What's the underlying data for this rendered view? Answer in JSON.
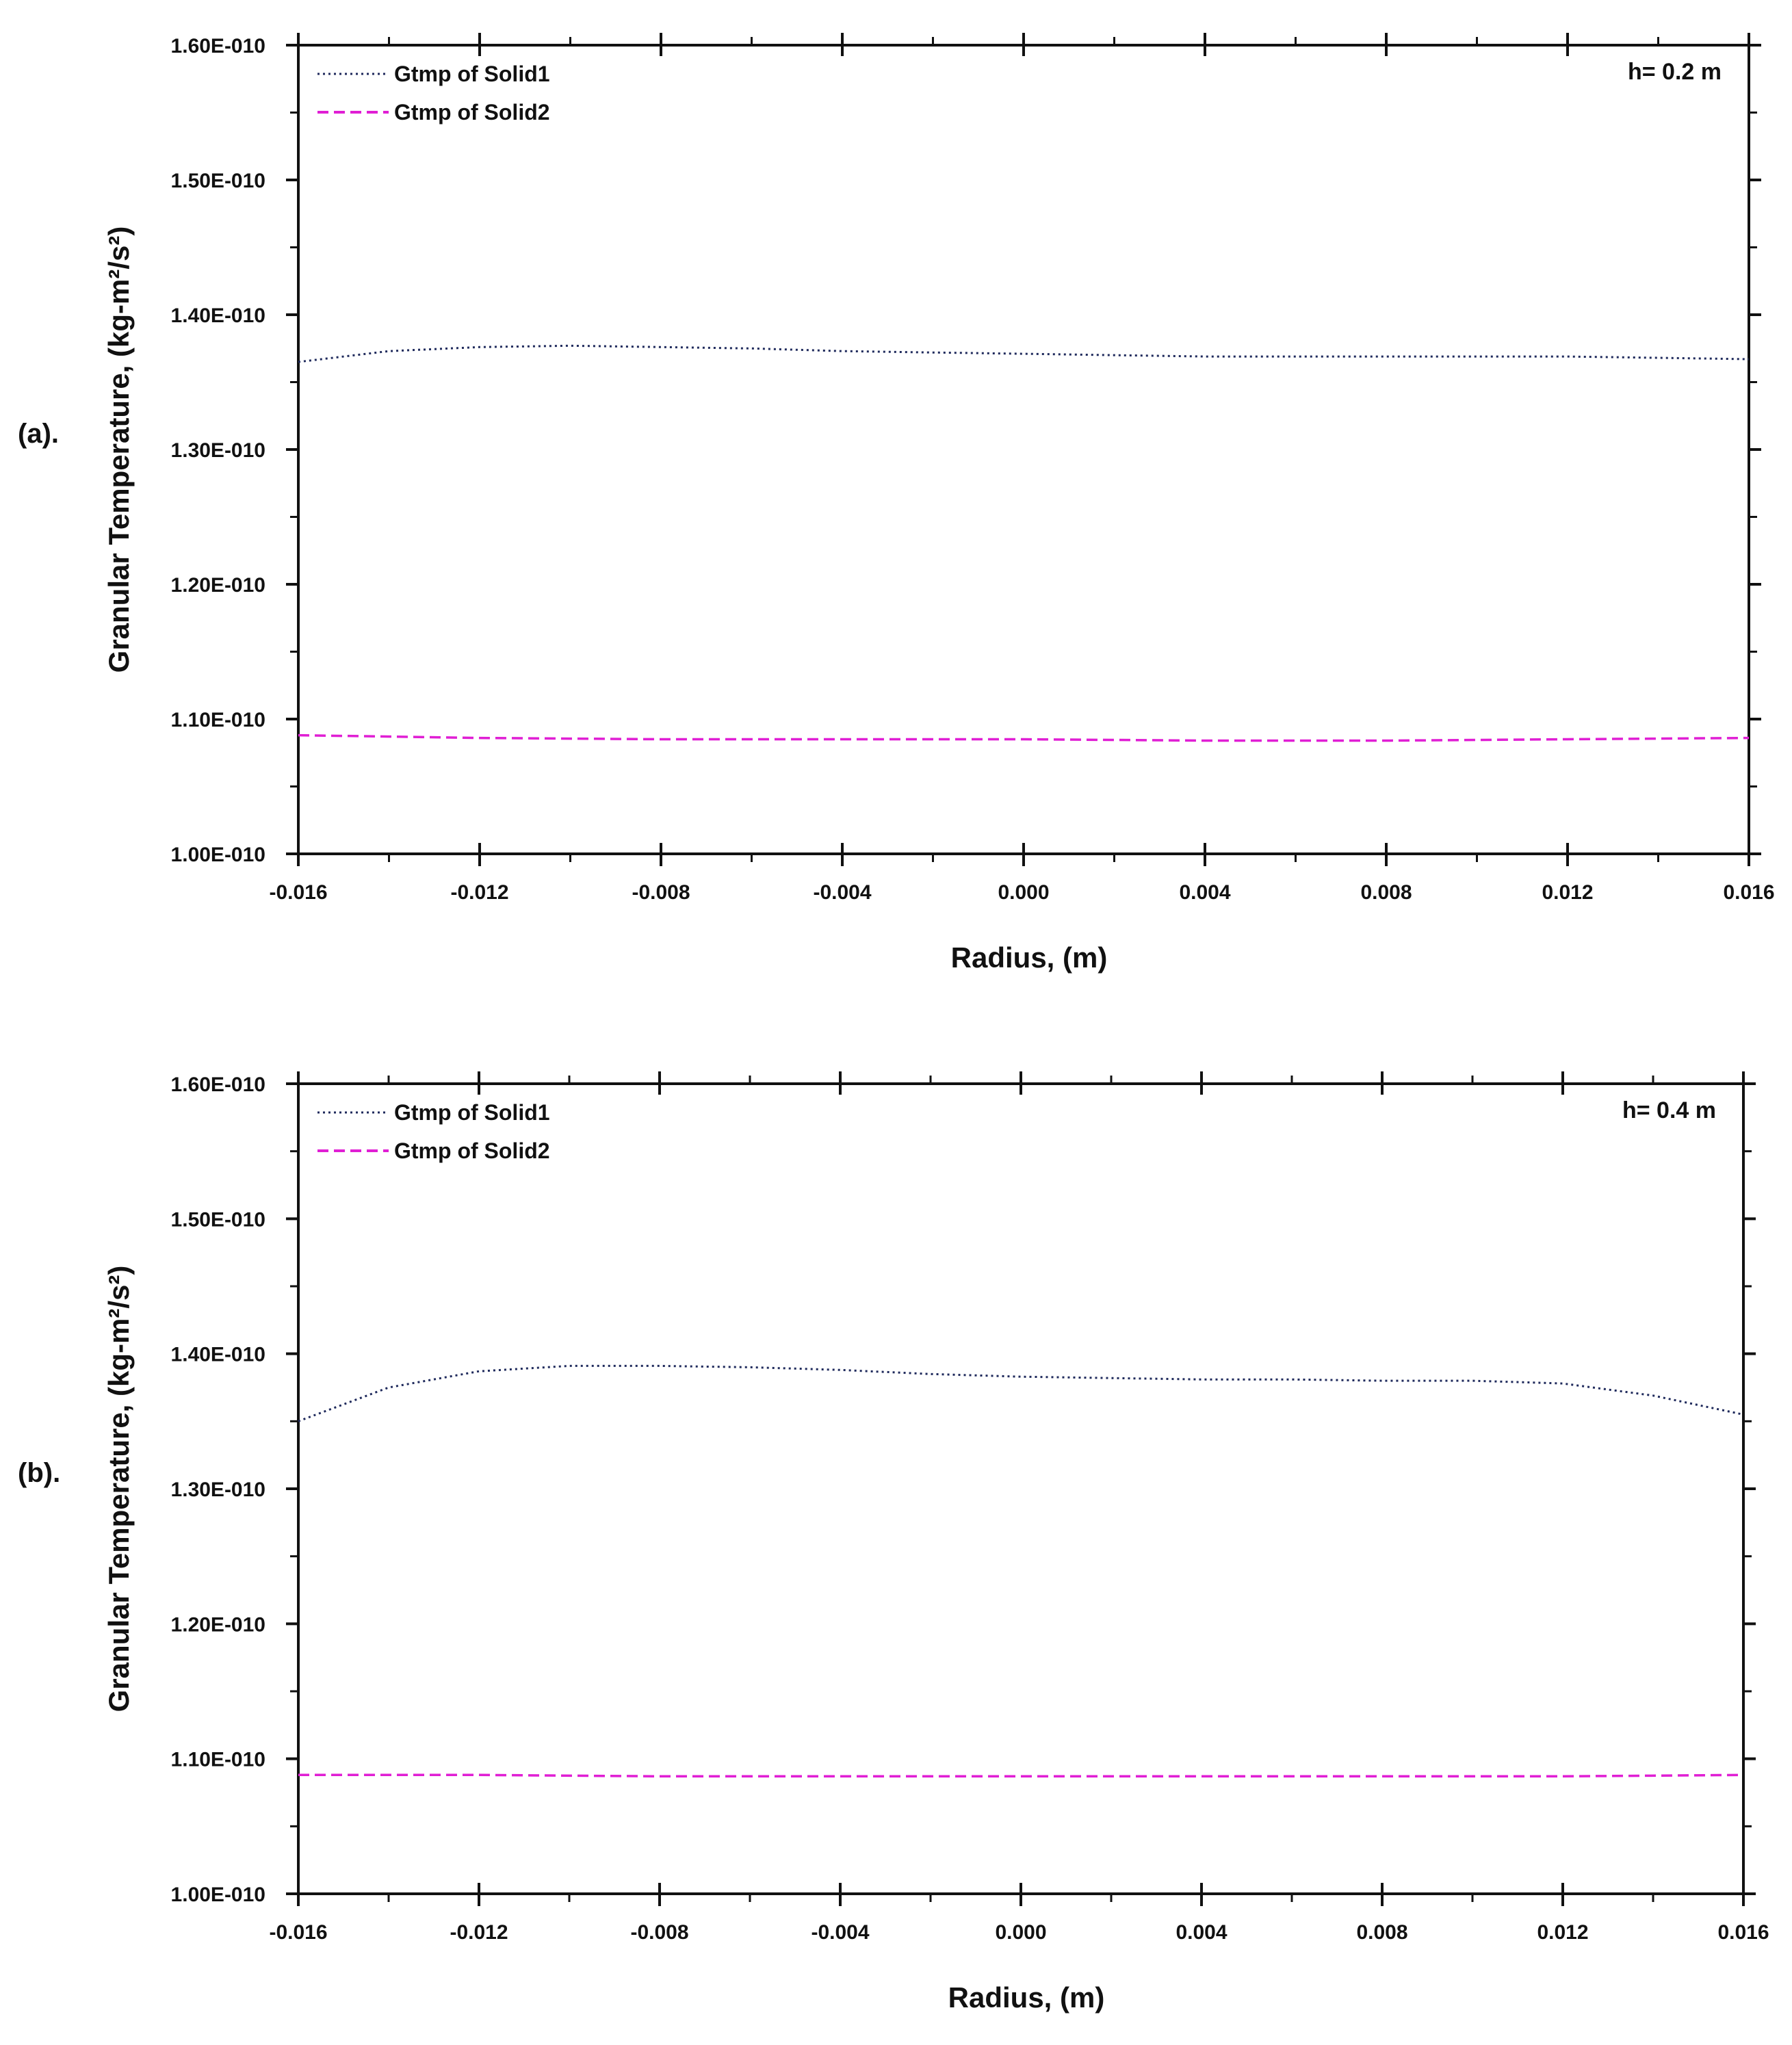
{
  "chart_data": [
    {
      "type": "line",
      "panel_label": "(a).",
      "annotation": "h= 0.2 m",
      "xlabel": "Radius, (m)",
      "ylabel": "Granular Temperature, (kg-m²/s²)",
      "xlim": [
        -0.016,
        0.016
      ],
      "ylim": [
        1e-10,
        1.6e-10
      ],
      "x_ticks": [
        -0.016,
        -0.012,
        -0.008,
        -0.004,
        0.0,
        0.004,
        0.008,
        0.012,
        0.016
      ],
      "x_tick_labels": [
        "-0.016",
        "-0.012",
        "-0.008",
        "-0.004",
        "0.000",
        "0.004",
        "0.008",
        "0.012",
        "0.016"
      ],
      "y_ticks": [
        1e-10,
        1.1e-10,
        1.2e-10,
        1.3e-10,
        1.4e-10,
        1.5e-10,
        1.6e-10
      ],
      "y_tick_labels": [
        "1.00E-010",
        "1.10E-010",
        "1.20E-010",
        "1.30E-010",
        "1.40E-010",
        "1.50E-010",
        "1.60E-010"
      ],
      "grid": false,
      "legend_position": "top-left",
      "series": [
        {
          "name": "Gtmp of Solid1",
          "color": "#1f2a5c",
          "style": "dotted",
          "x": [
            -0.016,
            -0.014,
            -0.012,
            -0.01,
            -0.008,
            -0.006,
            -0.004,
            -0.002,
            0.0,
            0.002,
            0.004,
            0.006,
            0.008,
            0.01,
            0.012,
            0.014,
            0.016
          ],
          "y": [
            1.365e-10,
            1.373e-10,
            1.376e-10,
            1.377e-10,
            1.376e-10,
            1.375e-10,
            1.373e-10,
            1.372e-10,
            1.371e-10,
            1.37e-10,
            1.369e-10,
            1.369e-10,
            1.369e-10,
            1.369e-10,
            1.369e-10,
            1.368e-10,
            1.367e-10
          ]
        },
        {
          "name": "Gtmp of Solid2",
          "color": "#e01fd4",
          "style": "dashed",
          "x": [
            -0.016,
            -0.012,
            -0.008,
            -0.004,
            0.0,
            0.004,
            0.008,
            0.012,
            0.016
          ],
          "y": [
            1.088e-10,
            1.086e-10,
            1.085e-10,
            1.085e-10,
            1.085e-10,
            1.084e-10,
            1.084e-10,
            1.085e-10,
            1.086e-10
          ]
        }
      ]
    },
    {
      "type": "line",
      "panel_label": "(b).",
      "annotation": "h= 0.4 m",
      "xlabel": "Radius, (m)",
      "ylabel": "Granular Temperature, (kg-m²/s²)",
      "xlim": [
        -0.016,
        0.016
      ],
      "ylim": [
        1e-10,
        1.6e-10
      ],
      "x_ticks": [
        -0.016,
        -0.012,
        -0.008,
        -0.004,
        0.0,
        0.004,
        0.008,
        0.012,
        0.016
      ],
      "x_tick_labels": [
        "-0.016",
        "-0.012",
        "-0.008",
        "-0.004",
        "0.000",
        "0.004",
        "0.008",
        "0.012",
        "0.016"
      ],
      "y_ticks": [
        1e-10,
        1.1e-10,
        1.2e-10,
        1.3e-10,
        1.4e-10,
        1.5e-10,
        1.6e-10
      ],
      "y_tick_labels": [
        "1.00E-010",
        "1.10E-010",
        "1.20E-010",
        "1.30E-010",
        "1.40E-010",
        "1.50E-010",
        "1.60E-010"
      ],
      "grid": false,
      "legend_position": "top-left",
      "series": [
        {
          "name": "Gtmp of Solid1",
          "color": "#1f2a5c",
          "style": "dotted",
          "x": [
            -0.016,
            -0.014,
            -0.012,
            -0.01,
            -0.008,
            -0.006,
            -0.004,
            -0.002,
            0.0,
            0.002,
            0.004,
            0.006,
            0.008,
            0.01,
            0.012,
            0.014,
            0.016
          ],
          "y": [
            1.35e-10,
            1.375e-10,
            1.387e-10,
            1.391e-10,
            1.391e-10,
            1.39e-10,
            1.388e-10,
            1.385e-10,
            1.383e-10,
            1.382e-10,
            1.381e-10,
            1.381e-10,
            1.38e-10,
            1.38e-10,
            1.378e-10,
            1.369e-10,
            1.355e-10
          ]
        },
        {
          "name": "Gtmp of Solid2",
          "color": "#e01fd4",
          "style": "dashed",
          "x": [
            -0.016,
            -0.012,
            -0.008,
            -0.004,
            0.0,
            0.004,
            0.008,
            0.012,
            0.016
          ],
          "y": [
            1.088e-10,
            1.088e-10,
            1.087e-10,
            1.087e-10,
            1.087e-10,
            1.087e-10,
            1.087e-10,
            1.087e-10,
            1.088e-10
          ]
        }
      ]
    }
  ]
}
